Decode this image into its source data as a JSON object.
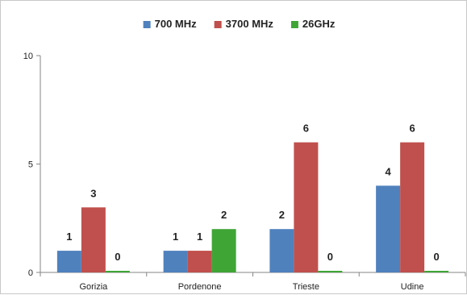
{
  "chart_data": {
    "type": "bar",
    "categories": [
      "Gorizia",
      "Pordenone",
      "Trieste",
      "Udine"
    ],
    "series": [
      {
        "name": "700 MHz",
        "values": [
          1,
          1,
          2,
          4
        ],
        "color": "#4f81bd"
      },
      {
        "name": "3700 MHz",
        "values": [
          3,
          1,
          6,
          6
        ],
        "color": "#c0504d"
      },
      {
        "name": "26GHz",
        "values": [
          0,
          2,
          0,
          0
        ],
        "color": "#3fa535"
      }
    ],
    "yticks": [
      0,
      5,
      10
    ],
    "ylim": [
      0,
      10
    ],
    "grid": false,
    "legend_position": "top-center"
  }
}
